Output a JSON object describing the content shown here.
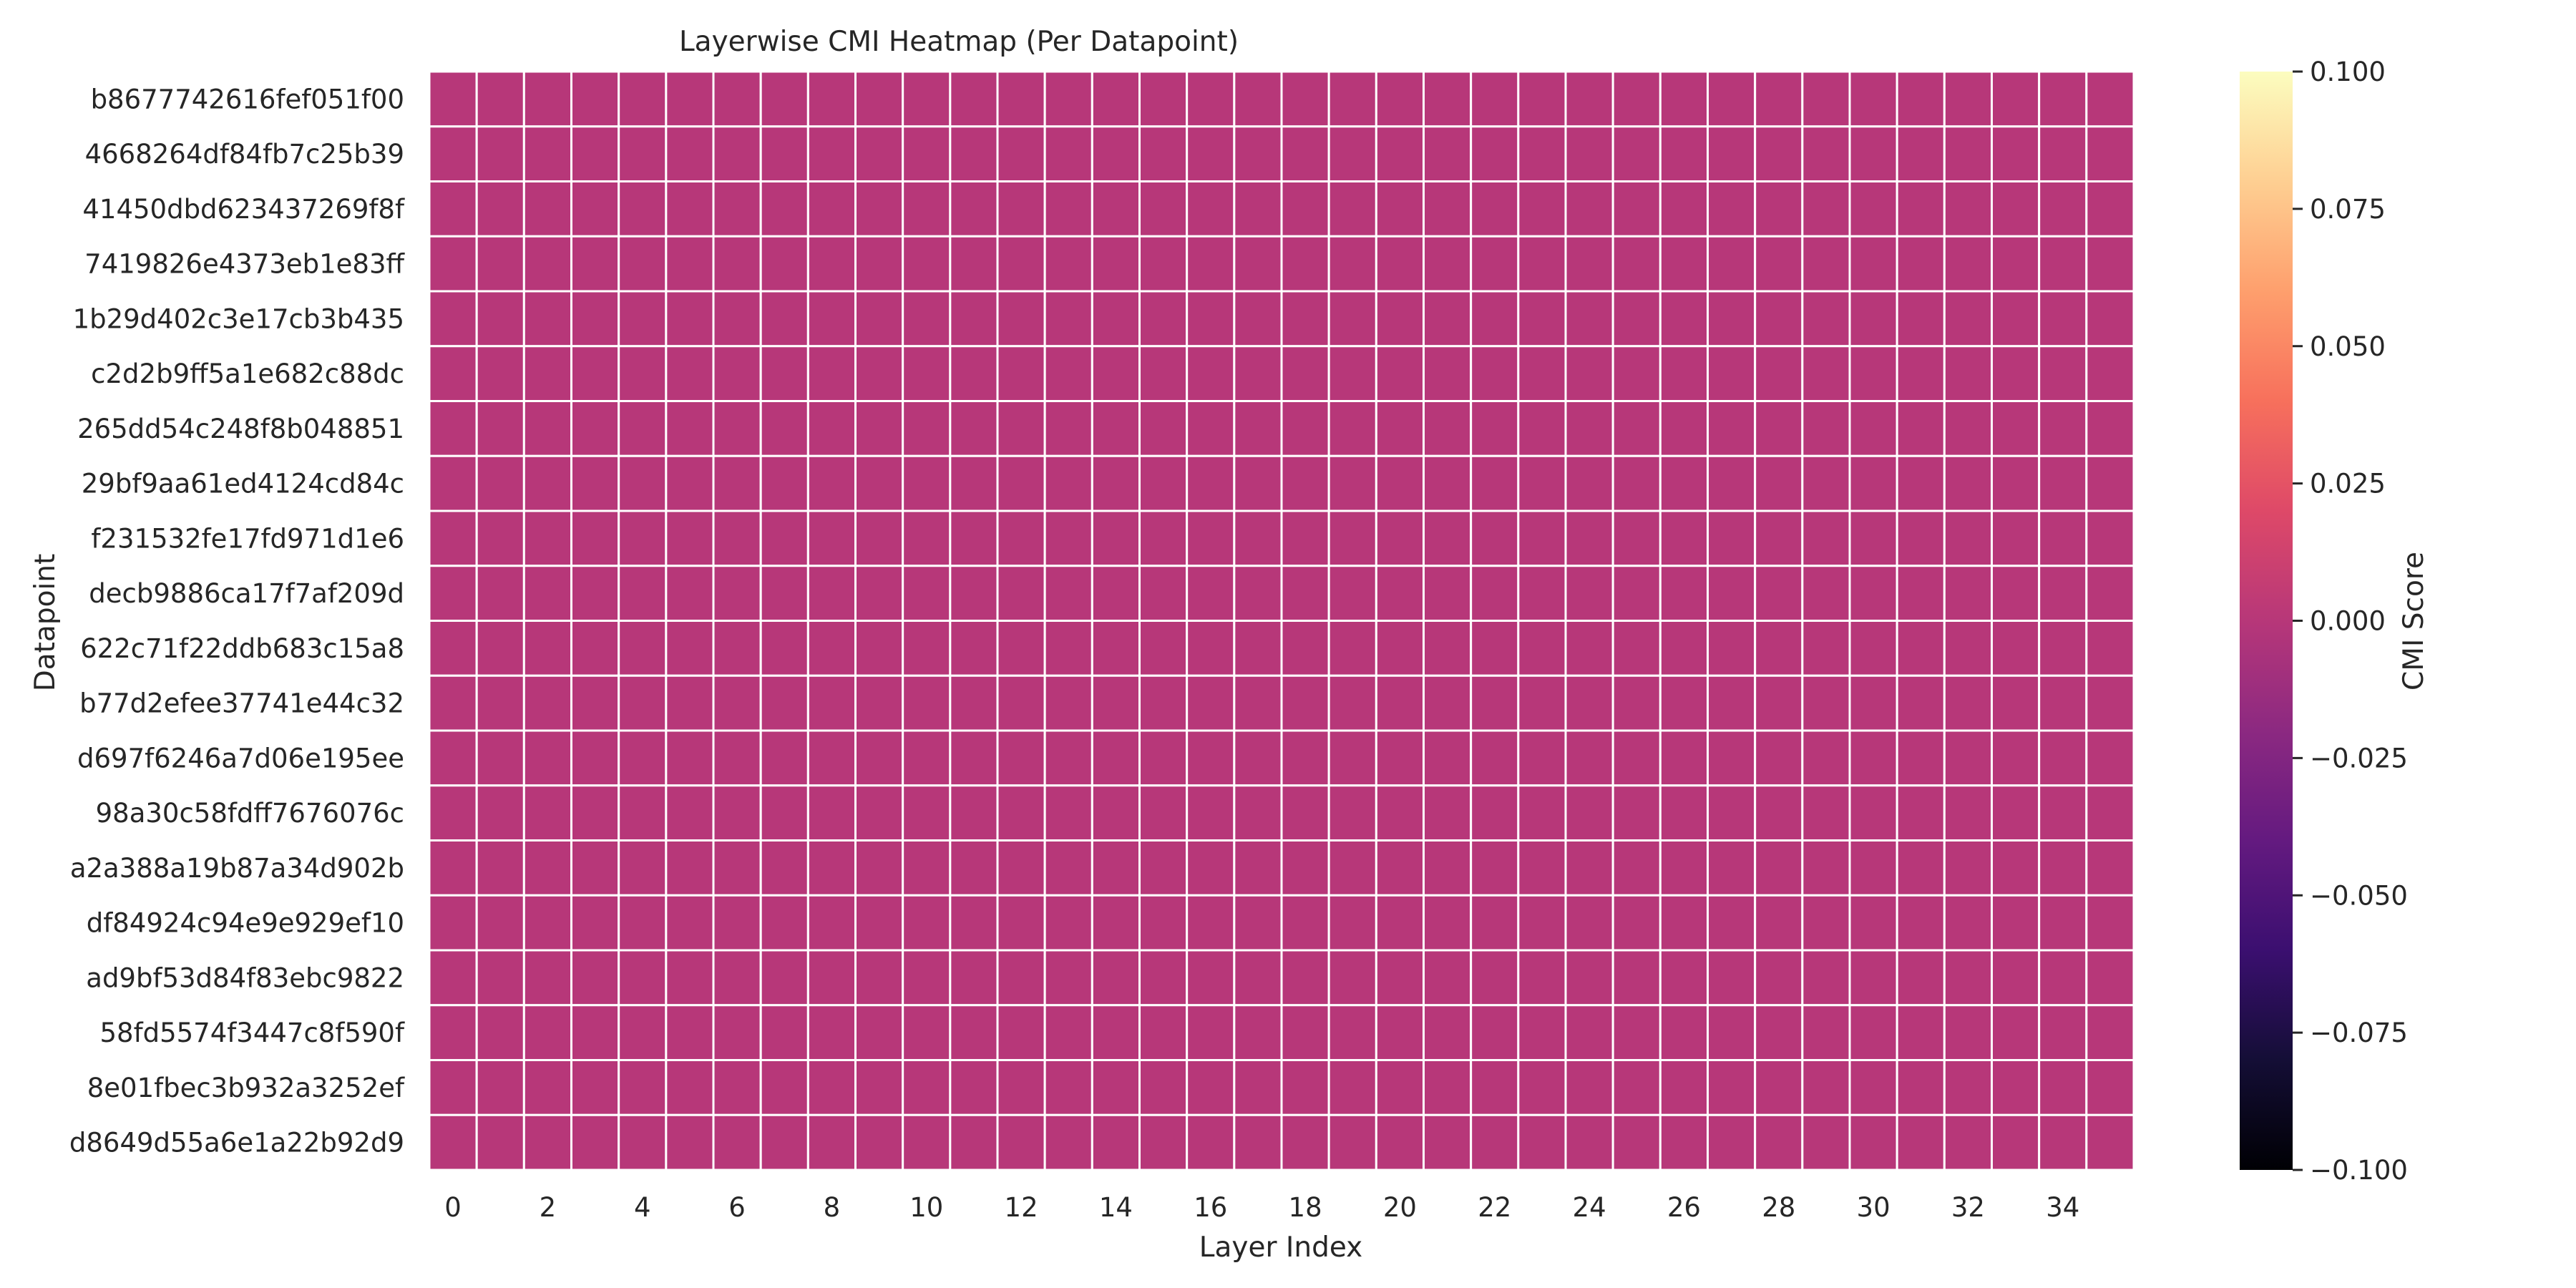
{
  "chart_data": {
    "type": "heatmap",
    "title": "Layerwise CMI Heatmap (Per Datapoint)",
    "xlabel": "Layer Index",
    "ylabel": "Datapoint",
    "x": [
      0,
      1,
      2,
      3,
      4,
      5,
      6,
      7,
      8,
      9,
      10,
      11,
      12,
      13,
      14,
      15,
      16,
      17,
      18,
      19,
      20,
      21,
      22,
      23,
      24,
      25,
      26,
      27,
      28,
      29,
      30,
      31,
      32,
      33,
      34,
      35
    ],
    "x_tick_labels": [
      "0",
      "2",
      "4",
      "6",
      "8",
      "10",
      "12",
      "14",
      "16",
      "18",
      "20",
      "22",
      "24",
      "26",
      "28",
      "30",
      "32",
      "34"
    ],
    "y": [
      "b8677742616fef051f00",
      "4668264df84fb7c25b39",
      "41450dbd623437269f8f",
      "7419826e4373eb1e83ff",
      "1b29d402c3e17cb3b435",
      "c2d2b9ff5a1e682c88dc",
      "265dd54c248f8b048851",
      "29bf9aa61ed4124cd84c",
      "f231532fe17fd971d1e6",
      "decb9886ca17f7af209d",
      "622c71f22ddb683c15a8",
      "b77d2efee37741e44c32",
      "d697f6246a7d06e195ee",
      "98a30c58fdff7676076c",
      "a2a388a19b87a34d902b",
      "df84924c94e9e929ef10",
      "ad9bf53d84f83ebc9822",
      "58fd5574f3447c8f590f",
      "8e01fbec3b932a3252ef",
      "d8649d55a6e1a22b92d9"
    ],
    "fill_value": 0.0,
    "colormap": "magma",
    "colorbar": {
      "label": "CMI Score",
      "range": [
        -0.1,
        0.1
      ],
      "ticks": [
        "0.100",
        "0.075",
        "0.050",
        "0.025",
        "0.000",
        "−0.025",
        "−0.050",
        "−0.075",
        "−0.100"
      ],
      "tick_values": [
        0.1,
        0.075,
        0.05,
        0.025,
        0.0,
        -0.025,
        -0.05,
        -0.075,
        -0.1
      ]
    },
    "grid_lines": true,
    "colors": {
      "cell": "#b73779",
      "cell_border": "#ffffff",
      "text": "#262626"
    }
  }
}
